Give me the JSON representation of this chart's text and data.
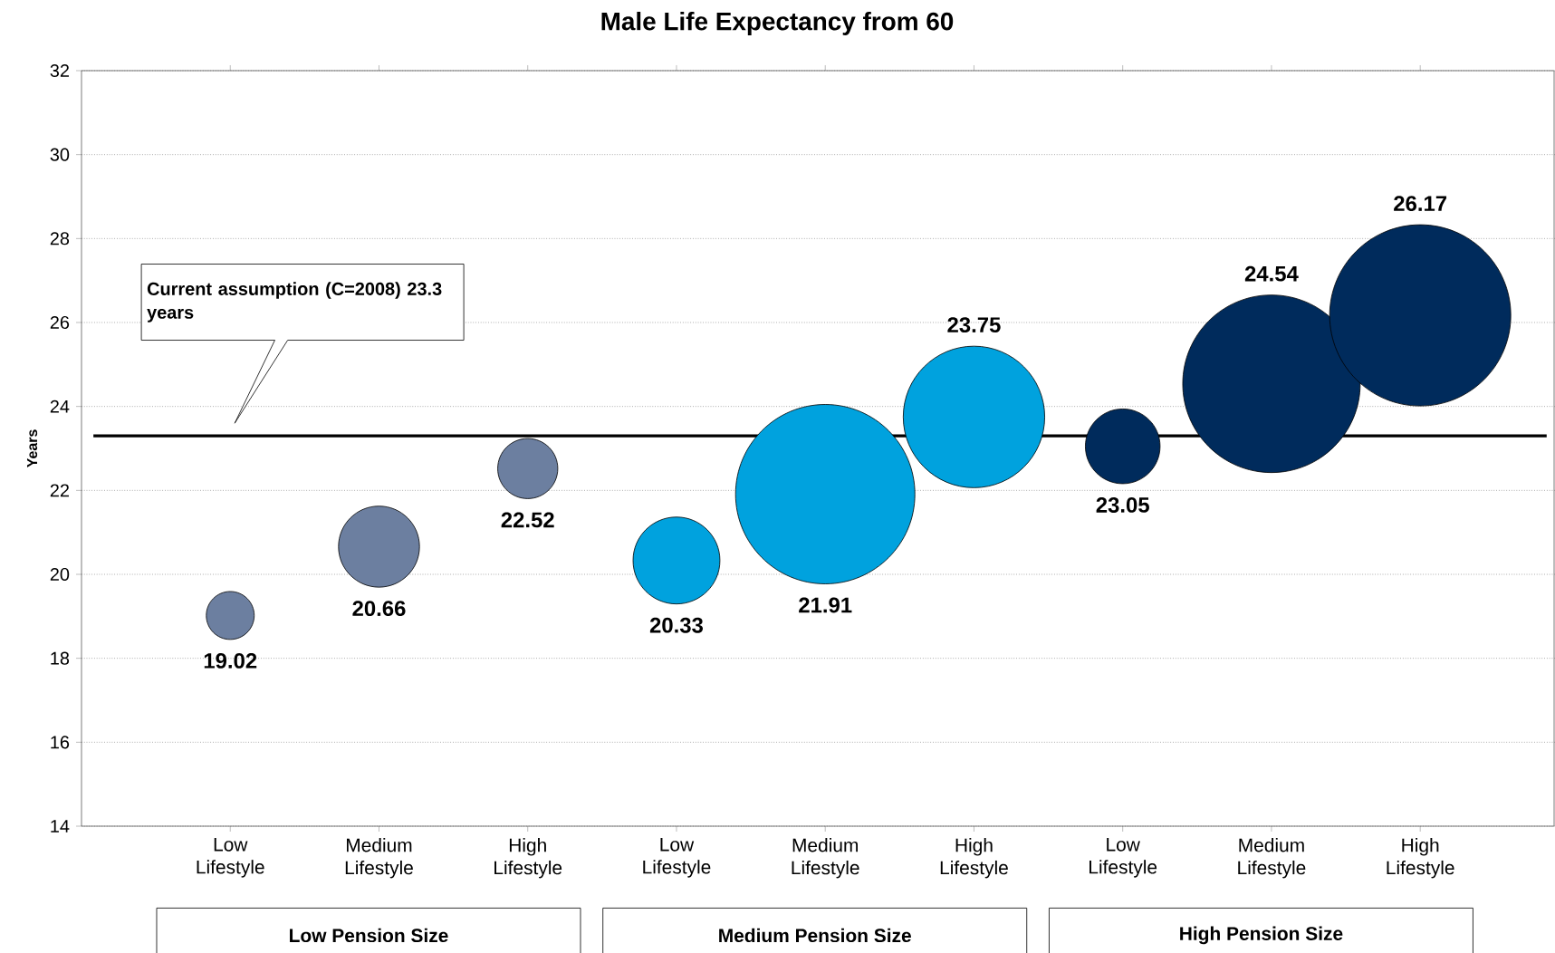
{
  "chart_data": {
    "type": "bubble",
    "title": "Male Life Expectancy from 60",
    "ylabel": "Years",
    "categories": [
      "Low Lifestyle",
      "Medium Lifestyle",
      "High Lifestyle",
      "Low Lifestyle",
      "Medium Lifestyle",
      "High Lifestyle",
      "Low Lifestyle",
      "Medium Lifestyle",
      "High Lifestyle"
    ],
    "values": [
      19.02,
      20.66,
      22.52,
      20.33,
      21.91,
      23.75,
      23.05,
      24.54,
      26.17
    ],
    "sizes": [
      0.07,
      0.2,
      0.11,
      0.23,
      0.98,
      0.61,
      0.17,
      0.96,
      1
    ],
    "colors": [
      "#6c7fa0",
      "#6c7fa0",
      "#6c7fa0",
      "#00a2de",
      "#00a2de",
      "#00a2de",
      "#002b5c",
      "#002b5c",
      "#002b5c"
    ],
    "data_labels": true,
    "ylim": [
      14,
      32
    ],
    "yticks": [
      14,
      16,
      18,
      20,
      22,
      24,
      26,
      28,
      30,
      32
    ],
    "grid": "y",
    "ref_lines": [
      {
        "axis": "y",
        "value": 23.3,
        "label": "Current assumption (C=2008) 23.3 years",
        "color": "#000000"
      }
    ],
    "annotations": [
      "Low Pension Size",
      "Medium Pension Size",
      "High Pension Size"
    ]
  }
}
